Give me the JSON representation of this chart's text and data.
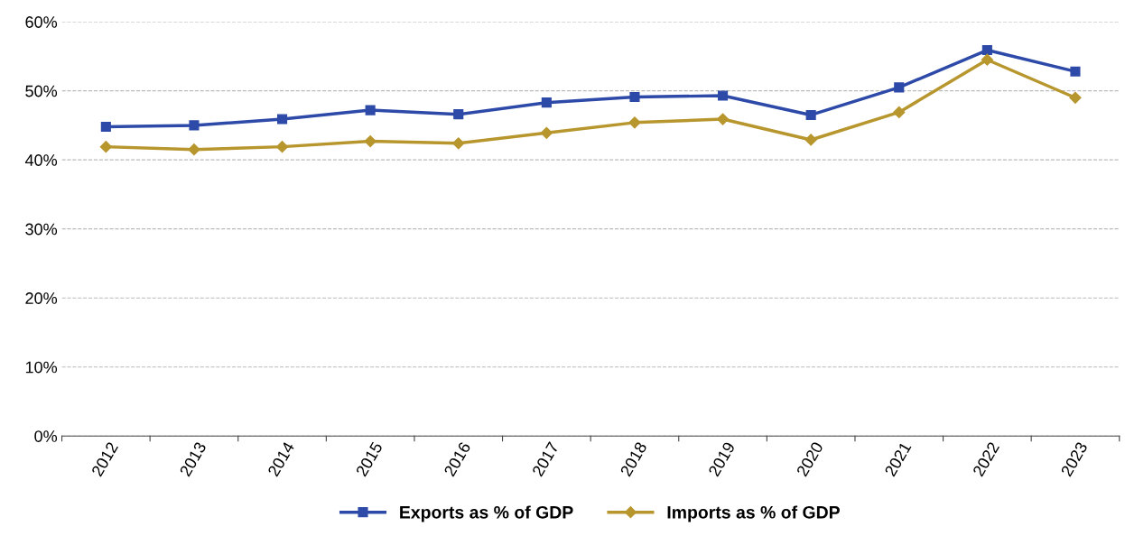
{
  "chart_data": {
    "type": "line",
    "categories": [
      "2012",
      "2013",
      "2014",
      "2015",
      "2016",
      "2017",
      "2018",
      "2019",
      "2020",
      "2021",
      "2022",
      "2023"
    ],
    "series": [
      {
        "name": "Exports as % of GDP",
        "color": "#2e4aa8",
        "marker": "square",
        "values": [
          44.8,
          45.0,
          45.9,
          47.2,
          46.6,
          48.3,
          49.1,
          49.3,
          46.5,
          50.5,
          55.9,
          52.8
        ]
      },
      {
        "name": "Imports as % of GDP",
        "color": "#b8962e",
        "marker": "diamond",
        "values": [
          41.9,
          41.5,
          41.9,
          42.7,
          42.4,
          43.9,
          45.4,
          45.9,
          42.9,
          46.9,
          54.5,
          49.0
        ]
      }
    ],
    "ylim": [
      0,
      60
    ],
    "yticks": [
      {
        "value": 0,
        "label": "0%"
      },
      {
        "value": 10,
        "label": "10%"
      },
      {
        "value": 20,
        "label": "20%"
      },
      {
        "value": 30,
        "label": "30%"
      },
      {
        "value": 40,
        "label": "40%"
      },
      {
        "value": 50,
        "label": "50%"
      },
      {
        "value": 60,
        "label": "60%"
      }
    ],
    "grid": "y",
    "legend": "bottom",
    "line_style": "solid"
  }
}
